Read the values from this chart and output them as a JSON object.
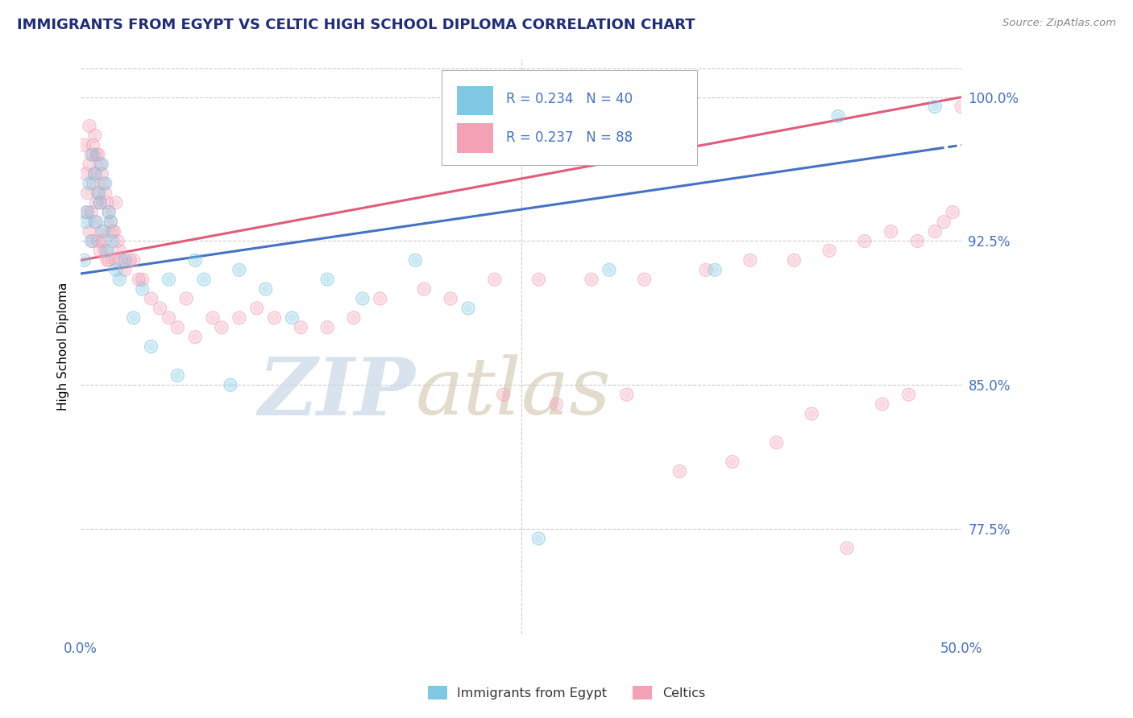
{
  "title": "IMMIGRANTS FROM EGYPT VS CELTIC HIGH SCHOOL DIPLOMA CORRELATION CHART",
  "source": "Source: ZipAtlas.com",
  "ylabel": "High School Diploma",
  "xmin": 0.0,
  "xmax": 50.0,
  "ymin": 72.0,
  "ymax": 102.0,
  "yticks": [
    77.5,
    85.0,
    92.5,
    100.0
  ],
  "ytick_labels": [
    "77.5%",
    "85.0%",
    "92.5%",
    "100.0%"
  ],
  "r_egypt": 0.234,
  "n_egypt": 40,
  "r_celtics": 0.237,
  "n_celtics": 88,
  "legend_label_egypt": "Immigrants from Egypt",
  "legend_label_celtics": "Celtics",
  "color_egypt": "#7ec8e3",
  "color_celtics": "#f4a0b5",
  "line_color_egypt": "#4472c4",
  "line_color_celtics": "#e05c7a",
  "title_color": "#1f2d7a",
  "axis_color": "#4472c4",
  "background_color": "#ffffff",
  "egypt_x": [
    0.2,
    0.3,
    0.4,
    0.5,
    0.6,
    0.7,
    0.8,
    0.9,
    1.0,
    1.1,
    1.2,
    1.3,
    1.4,
    1.5,
    1.6,
    1.7,
    1.8,
    2.0,
    2.2,
    2.5,
    3.0,
    3.5,
    4.0,
    5.0,
    5.5,
    6.5,
    7.0,
    8.5,
    9.0,
    10.5,
    12.0,
    14.0,
    16.0,
    19.0,
    22.0,
    26.0,
    30.0,
    36.0,
    43.0,
    48.5
  ],
  "egypt_y": [
    91.5,
    93.5,
    94.0,
    95.5,
    92.5,
    97.0,
    96.0,
    93.5,
    95.0,
    94.5,
    96.5,
    93.0,
    95.5,
    92.0,
    94.0,
    93.5,
    92.5,
    91.0,
    90.5,
    91.5,
    88.5,
    90.0,
    87.0,
    90.5,
    85.5,
    91.5,
    90.5,
    85.0,
    91.0,
    90.0,
    88.5,
    90.5,
    89.5,
    91.5,
    89.0,
    77.0,
    91.0,
    91.0,
    99.0,
    99.5
  ],
  "celtics_x": [
    0.2,
    0.3,
    0.3,
    0.4,
    0.5,
    0.5,
    0.5,
    0.6,
    0.6,
    0.7,
    0.7,
    0.7,
    0.8,
    0.8,
    0.8,
    0.9,
    0.9,
    1.0,
    1.0,
    1.0,
    1.1,
    1.1,
    1.1,
    1.2,
    1.2,
    1.3,
    1.3,
    1.4,
    1.4,
    1.5,
    1.5,
    1.6,
    1.6,
    1.7,
    1.8,
    1.9,
    2.0,
    2.0,
    2.1,
    2.2,
    2.3,
    2.5,
    2.8,
    3.0,
    3.3,
    3.5,
    4.0,
    4.5,
    5.0,
    5.5,
    6.0,
    6.5,
    7.5,
    8.0,
    9.0,
    10.0,
    11.0,
    12.5,
    14.0,
    15.5,
    17.0,
    19.5,
    21.0,
    23.5,
    26.0,
    29.0,
    32.0,
    35.5,
    38.0,
    40.5,
    42.5,
    44.5,
    46.0,
    47.5,
    48.5,
    49.0,
    49.5,
    50.0,
    24.0,
    27.0,
    31.0,
    34.0,
    37.0,
    39.5,
    41.5,
    43.5,
    45.5,
    47.0
  ],
  "celtics_y": [
    97.5,
    96.0,
    94.0,
    95.0,
    98.5,
    96.5,
    93.0,
    97.0,
    94.0,
    97.5,
    95.5,
    92.5,
    98.0,
    96.0,
    93.5,
    97.0,
    94.5,
    97.0,
    95.0,
    92.5,
    96.5,
    94.5,
    92.0,
    96.0,
    93.0,
    95.5,
    92.5,
    95.0,
    92.0,
    94.5,
    91.5,
    94.0,
    91.5,
    93.5,
    93.0,
    93.0,
    94.5,
    91.5,
    92.5,
    92.0,
    91.5,
    91.0,
    91.5,
    91.5,
    90.5,
    90.5,
    89.5,
    89.0,
    88.5,
    88.0,
    89.5,
    87.5,
    88.5,
    88.0,
    88.5,
    89.0,
    88.5,
    88.0,
    88.0,
    88.5,
    89.5,
    90.0,
    89.5,
    90.5,
    90.5,
    90.5,
    90.5,
    91.0,
    91.5,
    91.5,
    92.0,
    92.5,
    93.0,
    92.5,
    93.0,
    93.5,
    94.0,
    99.5,
    84.5,
    84.0,
    84.5,
    80.5,
    81.0,
    82.0,
    83.5,
    76.5,
    84.0,
    84.5
  ],
  "egypt_trend_x0": 0.0,
  "egypt_trend_x1": 50.0,
  "egypt_trend_y0": 90.8,
  "egypt_trend_y1": 97.5,
  "celtics_trend_x0": 0.0,
  "celtics_trend_x1": 50.0,
  "celtics_trend_y0": 91.5,
  "celtics_trend_y1": 100.0
}
